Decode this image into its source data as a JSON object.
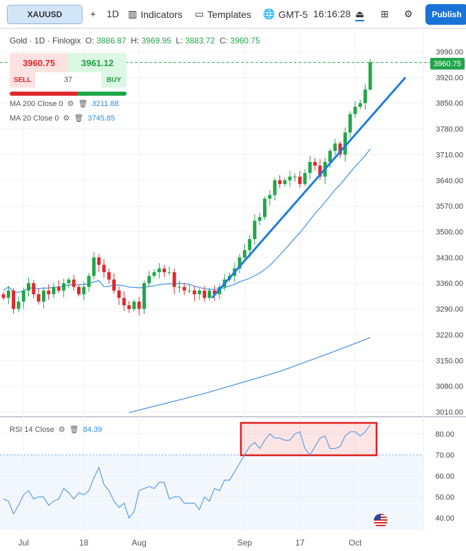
{
  "toolbar": {
    "symbol": "XAUUSD",
    "add": "+",
    "interval": "1D",
    "indicators": "Indicators",
    "templates": "Templates",
    "timezone": "GMT-5",
    "clock": "16:16:28",
    "publish": "Publish"
  },
  "legend": {
    "title": "Gold · 1D · Finlogix",
    "o_label": "O:",
    "o": "3886.87",
    "h_label": "H:",
    "h": "3969.95",
    "l_label": "L:",
    "l": "3883.72",
    "c_label": "C:",
    "c": "3960.75"
  },
  "trade": {
    "sell_price": "3960.75",
    "buy_price": "3961.12",
    "sell": "SELL",
    "buy": "BUY",
    "quantity": "37"
  },
  "indicators": [
    {
      "label": "MA 200 Close 0",
      "value": "3211.88"
    },
    {
      "label": "MA 20 Close 0",
      "value": "3745.85"
    }
  ],
  "rsi": {
    "label": "RSI 14 Close",
    "value": "84.39"
  },
  "last_price_tag": "3960.75",
  "colors": {
    "up": "#22a64a",
    "down": "#e0282c",
    "ma": "#3d8fe6",
    "trend": "#1e7be0",
    "accent": "#1a73d6"
  },
  "chart_data": {
    "type": "candlestick",
    "price_ticks": [
      "3990.00",
      "3920.00",
      "3850.00",
      "3780.00",
      "3710.00",
      "3640.00",
      "3570.00",
      "3500.00",
      "3430.00",
      "3360.00",
      "3290.00",
      "3220.00",
      "3150.00",
      "3080.00",
      "3010.00"
    ],
    "price_range": [
      3010,
      3990
    ],
    "rsi_ticks": [
      "80.00",
      "70.00",
      "60.00",
      "50.00",
      "40.00"
    ],
    "rsi_range": [
      40,
      80
    ],
    "rsi_overbought": 70,
    "time_labels": [
      {
        "label": "Jul",
        "i": 4
      },
      {
        "label": "18",
        "i": 16
      },
      {
        "label": "Aug",
        "i": 27
      },
      {
        "label": "Sep",
        "i": 48
      },
      {
        "label": "17",
        "i": 59
      },
      {
        "label": "Oct",
        "i": 70
      }
    ],
    "first_open": 3330,
    "closes": [
      3320,
      3340,
      3290,
      3310,
      3340,
      3360,
      3330,
      3310,
      3340,
      3330,
      3350,
      3340,
      3360,
      3370,
      3350,
      3330,
      3350,
      3380,
      3430,
      3410,
      3390,
      3370,
      3340,
      3320,
      3300,
      3290,
      3310,
      3290,
      3360,
      3380,
      3390,
      3400,
      3390,
      3390,
      3350,
      3350,
      3340,
      3340,
      3330,
      3340,
      3320,
      3340,
      3330,
      3350,
      3370,
      3380,
      3400,
      3430,
      3450,
      3480,
      3530,
      3540,
      3590,
      3600,
      3640,
      3630,
      3640,
      3650,
      3650,
      3630,
      3660,
      3690,
      3680,
      3650,
      3690,
      3720,
      3740,
      3710,
      3770,
      3820,
      3840,
      3850,
      3886.87,
      3960.75
    ],
    "last_high": 3969.95,
    "last_low": 3883.72,
    "ma200": [
      [
        25,
        3008
      ],
      [
        40,
        3060
      ],
      [
        55,
        3120
      ],
      [
        65,
        3170
      ],
      [
        73,
        3212
      ]
    ],
    "trendline": [
      [
        41.5,
        3320
      ],
      [
        80,
        3920
      ]
    ],
    "rsi_values": [
      49,
      48,
      42,
      46,
      51,
      53,
      49,
      50,
      50,
      46,
      48,
      49,
      54,
      52,
      49,
      52,
      51,
      53,
      59,
      64,
      56,
      53,
      48,
      45,
      47,
      40,
      43,
      53,
      54,
      55,
      54,
      57,
      57,
      49,
      50,
      50,
      47,
      47,
      47,
      44,
      50,
      48,
      54,
      53,
      58,
      58,
      62,
      66,
      70,
      74,
      76,
      73,
      77,
      80,
      78,
      78,
      77,
      77,
      80,
      81,
      73,
      70,
      74,
      78,
      79,
      73,
      73,
      74,
      79,
      81,
      81,
      79,
      81,
      84.39
    ]
  }
}
